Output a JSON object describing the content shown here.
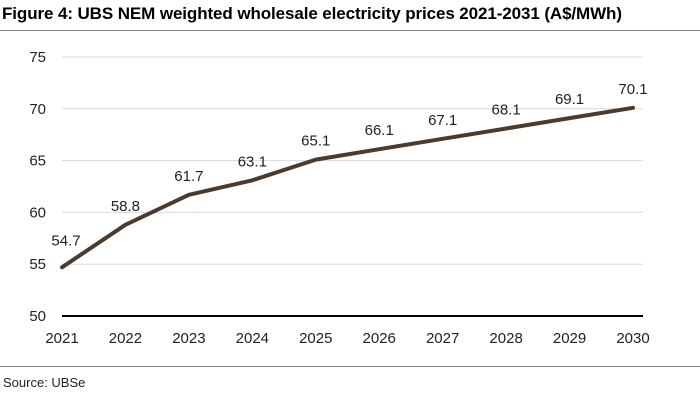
{
  "figure": {
    "title": "Figure 4: UBS NEM weighted wholesale electricity prices 2021-2031 (A$/MWh)",
    "source": "Source: UBSe"
  },
  "chart_data": {
    "type": "line",
    "title": "Figure 4: UBS NEM weighted wholesale electricity prices 2021-2031 (A$/MWh)",
    "xlabel": "",
    "ylabel": "",
    "x": [
      "2021",
      "2022",
      "2023",
      "2024",
      "2025",
      "2026",
      "2027",
      "2028",
      "2029",
      "2030"
    ],
    "series": [
      {
        "values": [
          54.7,
          58.8,
          61.7,
          63.1,
          65.1,
          66.1,
          67.1,
          68.1,
          69.1,
          70.1
        ],
        "labels": [
          "54.7",
          "58.8",
          "61.7",
          "63.1",
          "65.1",
          "66.1",
          "67.1",
          "68.1",
          "69.1",
          "70.1"
        ],
        "color": "#4b3a2e"
      }
    ],
    "ylim": [
      50,
      75
    ],
    "yticks": [
      50,
      55,
      60,
      65,
      70,
      75
    ],
    "grid": true,
    "legend": "none",
    "gridColor": "#d9d9d9",
    "axisColor": "#000000"
  }
}
